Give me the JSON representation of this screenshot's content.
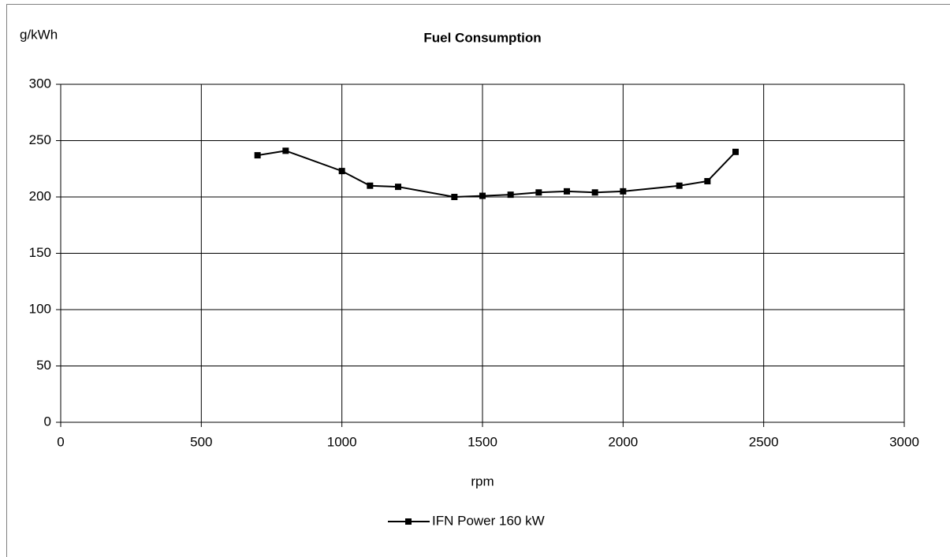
{
  "chart_data": {
    "type": "line",
    "title": "Fuel Consumption",
    "y_label": "g/kWh",
    "x_label": "rpm",
    "x": [
      700,
      800,
      1000,
      1100,
      1200,
      1400,
      1500,
      1600,
      1700,
      1800,
      1900,
      2000,
      2200,
      2300,
      2400
    ],
    "series": [
      {
        "name": "IFN Power 160 kW",
        "color": "#000000",
        "values": [
          237,
          241,
          223,
          210,
          209,
          200,
          201,
          202,
          204,
          205,
          204,
          205,
          210,
          214,
          240
        ]
      }
    ],
    "xlim": [
      0,
      3000
    ],
    "xticks": [
      0,
      500,
      1000,
      1500,
      2000,
      2500,
      3000
    ],
    "ylim": [
      0,
      300
    ],
    "yticks": [
      0,
      50,
      100,
      150,
      200,
      250,
      300
    ],
    "grid": true,
    "legend": "bottom"
  }
}
